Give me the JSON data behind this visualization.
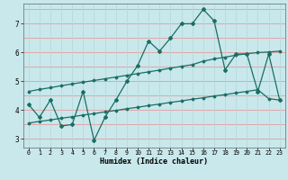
{
  "title": "",
  "xlabel": "Humidex (Indice chaleur)",
  "ylabel": "",
  "bg_color": "#c8e8ec",
  "line_color": "#1a6e64",
  "grid_color_h": "#e89898",
  "grid_color_v": "#b8d8dc",
  "x_main": [
    0,
    1,
    2,
    3,
    4,
    5,
    6,
    7,
    8,
    9,
    10,
    11,
    12,
    13,
    14,
    15,
    16,
    17,
    18,
    19,
    20,
    21,
    22,
    23
  ],
  "y_main": [
    4.2,
    3.75,
    4.35,
    3.45,
    3.5,
    4.65,
    2.95,
    3.75,
    4.35,
    5.0,
    5.55,
    6.4,
    6.05,
    6.5,
    7.0,
    7.0,
    7.5,
    7.1,
    5.4,
    5.95,
    5.95,
    4.65,
    5.95,
    4.35
  ],
  "x_upper": [
    0,
    1,
    2,
    3,
    4,
    5,
    6,
    7,
    8,
    9,
    10,
    11,
    12,
    13,
    14,
    15,
    16,
    17,
    18,
    19,
    20,
    21,
    22,
    23
  ],
  "y_upper": [
    4.65,
    4.72,
    4.78,
    4.85,
    4.91,
    4.97,
    5.03,
    5.09,
    5.15,
    5.21,
    5.27,
    5.33,
    5.39,
    5.46,
    5.52,
    5.58,
    5.7,
    5.78,
    5.84,
    5.91,
    5.96,
    6.0,
    6.02,
    6.05
  ],
  "x_lower": [
    0,
    1,
    2,
    3,
    4,
    5,
    6,
    7,
    8,
    9,
    10,
    11,
    12,
    13,
    14,
    15,
    16,
    17,
    18,
    19,
    20,
    21,
    22,
    23
  ],
  "y_lower": [
    3.55,
    3.61,
    3.66,
    3.72,
    3.77,
    3.83,
    3.88,
    3.94,
    3.99,
    4.05,
    4.1,
    4.16,
    4.21,
    4.27,
    4.32,
    4.38,
    4.43,
    4.49,
    4.54,
    4.6,
    4.65,
    4.71,
    4.4,
    4.35
  ],
  "xlim": [
    -0.5,
    23.5
  ],
  "ylim": [
    2.7,
    7.7
  ],
  "xticks": [
    0,
    1,
    2,
    3,
    4,
    5,
    6,
    7,
    8,
    9,
    10,
    11,
    12,
    13,
    14,
    15,
    16,
    17,
    18,
    19,
    20,
    21,
    22,
    23
  ],
  "yticks": [
    3,
    4,
    5,
    6,
    7
  ],
  "grid_xticks": [
    0,
    1,
    2,
    3,
    4,
    5,
    6,
    7,
    8,
    9,
    10,
    11,
    12,
    13,
    14,
    15,
    16,
    17,
    18,
    19,
    20,
    21,
    22,
    23
  ],
  "grid_yticks": [
    2.5,
    3.0,
    3.5,
    4.0,
    4.5,
    5.0,
    5.5,
    6.0,
    6.5,
    7.0,
    7.5
  ]
}
